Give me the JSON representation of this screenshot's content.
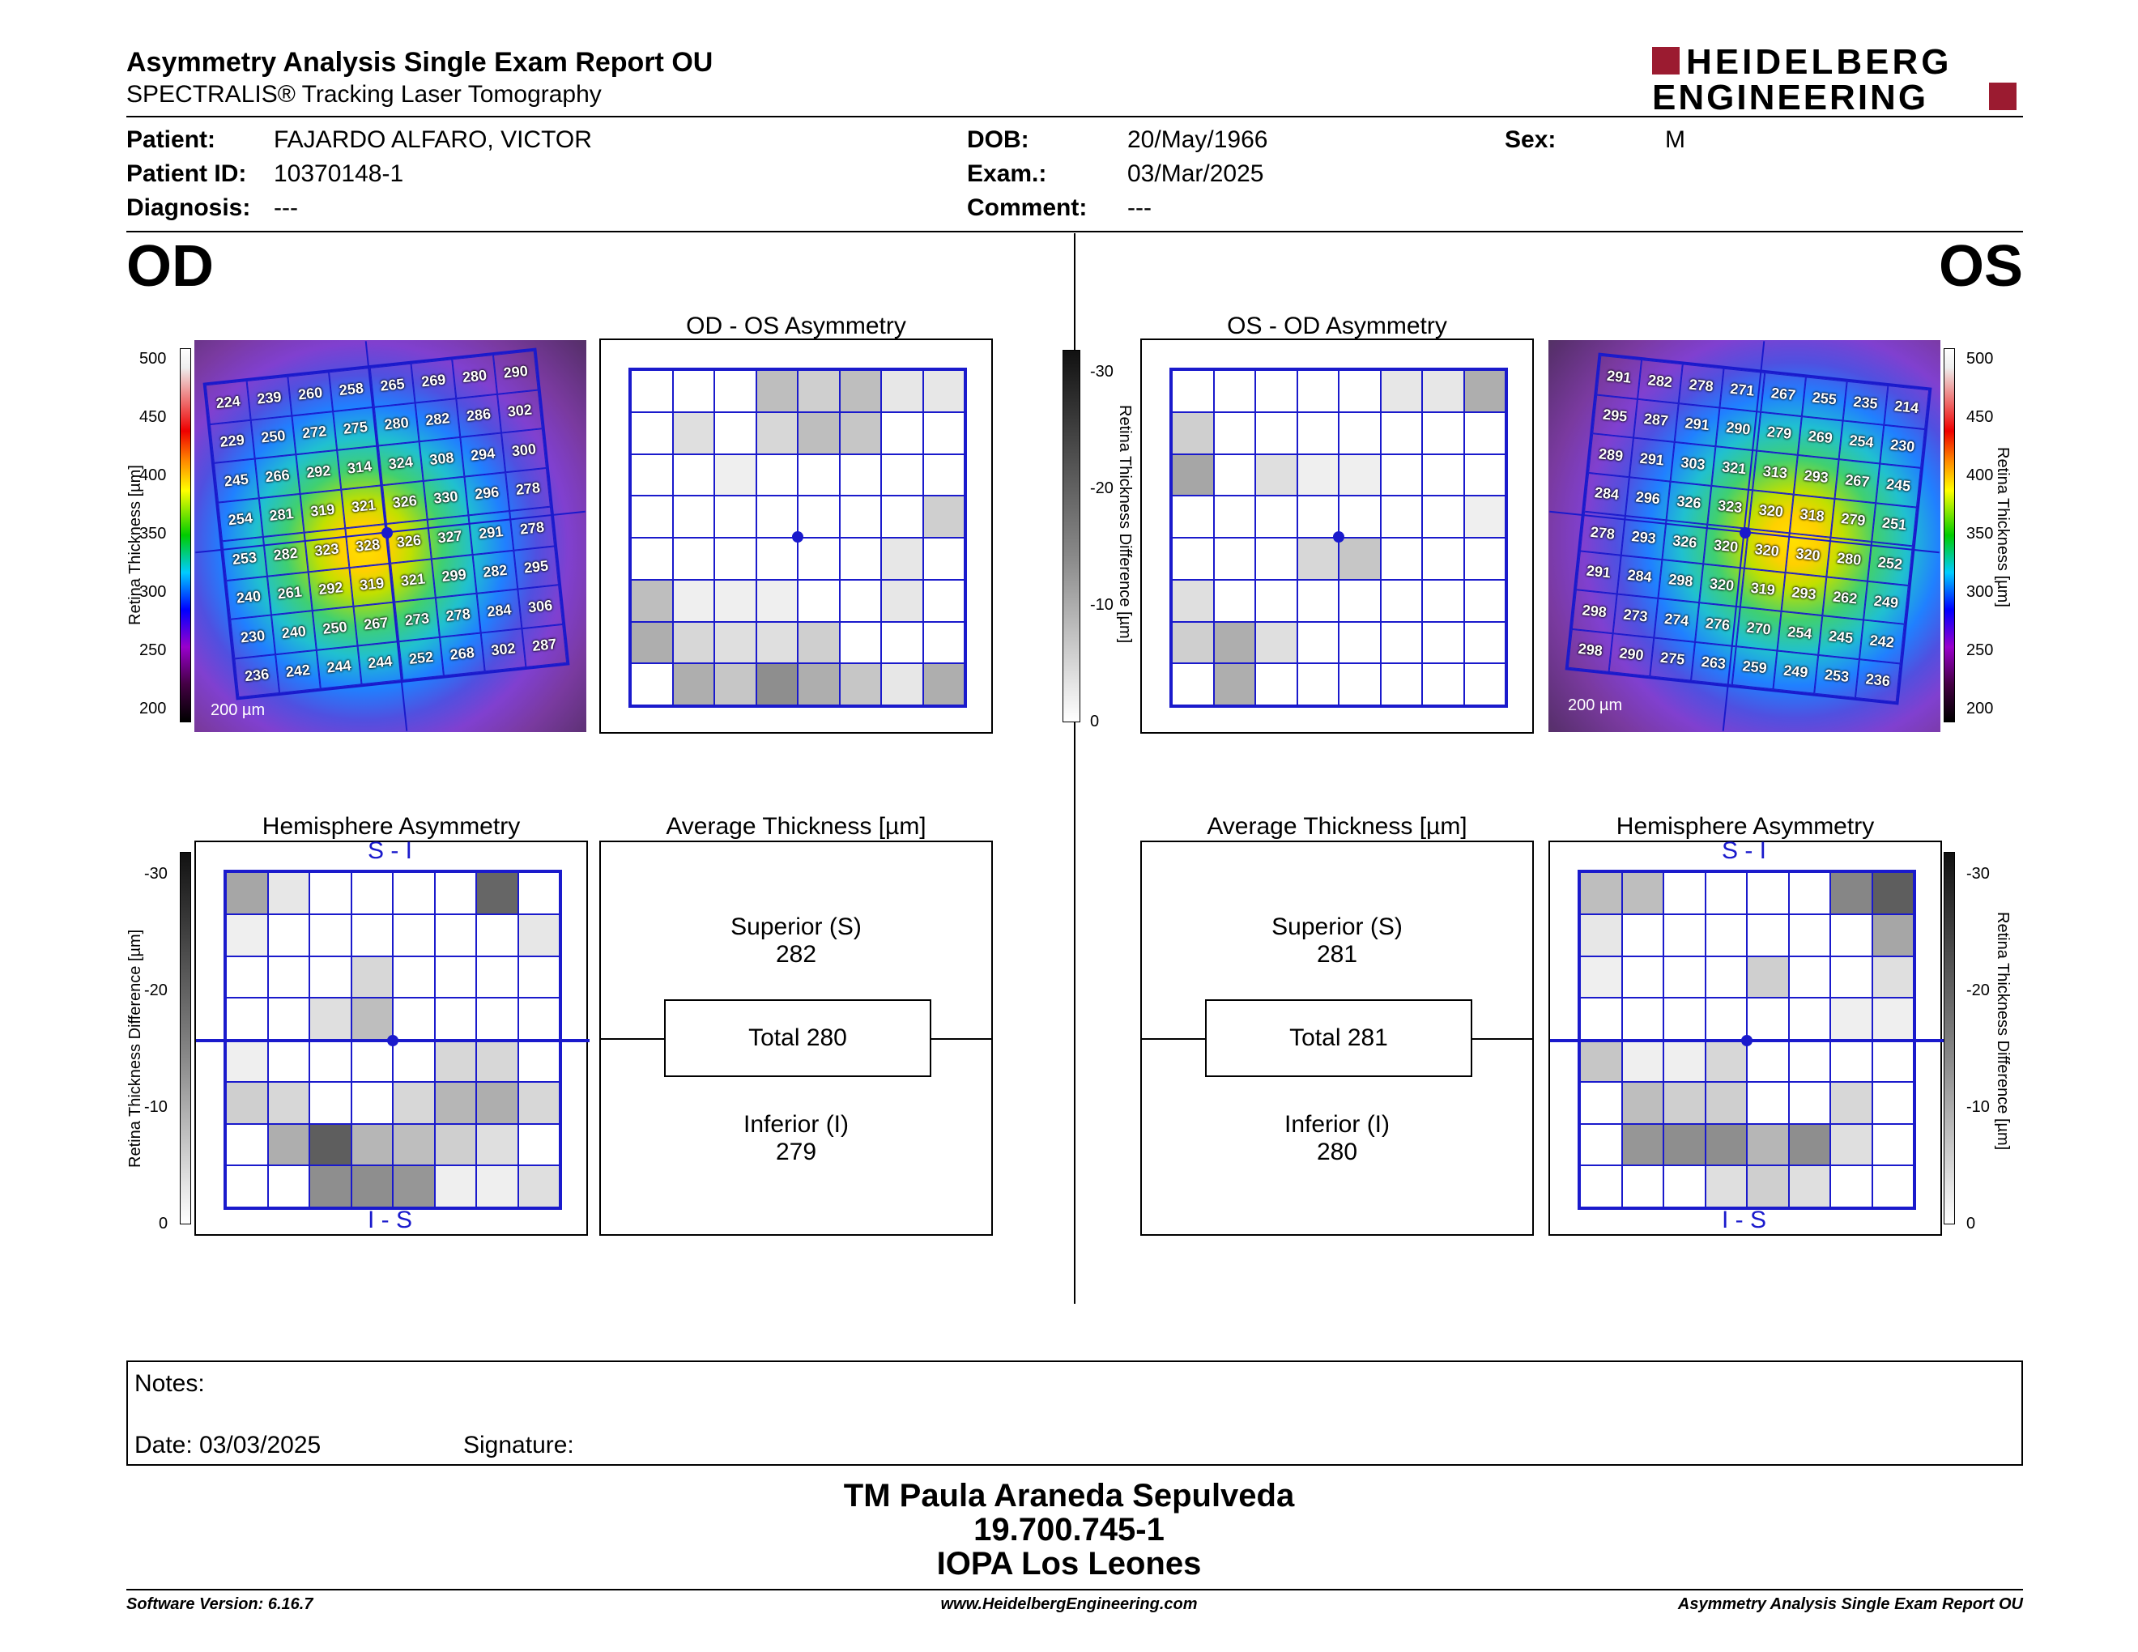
{
  "header": {
    "title": "Asymmetry Analysis Single Exam Report OU",
    "subtitle": "SPECTRALIS® Tracking Laser Tomography",
    "logo_line1": "HEIDELBERG",
    "logo_line2": "ENGINEERING",
    "brand_color": "#9b1b30"
  },
  "patient": {
    "patient_label": "Patient:",
    "patient_value": "FAJARDO ALFARO, VICTOR",
    "id_label": "Patient ID:",
    "id_value": "10370148-1",
    "diag_label": "Diagnosis:",
    "diag_value": "---",
    "dob_label": "DOB:",
    "dob_value": "20/May/1966",
    "exam_label": "Exam.:",
    "exam_value": "03/Mar/2025",
    "comment_label": "Comment:",
    "comment_value": "---",
    "sex_label": "Sex:",
    "sex_value": "M"
  },
  "od": {
    "eye_label": "OD",
    "asym_title": "OD - OS Asymmetry",
    "hemi_title": "Hemisphere Asymmetry",
    "avg_title": "Average Thickness [µm]",
    "superior_label": "Superior (S)",
    "superior_value": "282",
    "total_label": "Total 280",
    "inferior_label": "Inferior (I)",
    "inferior_value": "279",
    "scale_label": "200 µm",
    "thickness_grid": [
      [
        224,
        239,
        260,
        258,
        265,
        269,
        280,
        290
      ],
      [
        229,
        250,
        272,
        275,
        280,
        282,
        286,
        302
      ],
      [
        245,
        266,
        292,
        314,
        324,
        308,
        294,
        300
      ],
      [
        254,
        281,
        319,
        321,
        326,
        330,
        296,
        278
      ],
      [
        253,
        282,
        323,
        328,
        326,
        327,
        291,
        278
      ],
      [
        240,
        261,
        292,
        319,
        321,
        299,
        282,
        295
      ],
      [
        230,
        240,
        250,
        267,
        273,
        278,
        284,
        306
      ],
      [
        236,
        242,
        244,
        244,
        252,
        268,
        302,
        287
      ]
    ],
    "asym_grid": [
      [
        0,
        0,
        0,
        8,
        6,
        8,
        3,
        3
      ],
      [
        0,
        4,
        0,
        5,
        8,
        7,
        0,
        0
      ],
      [
        0,
        0,
        2,
        0,
        0,
        0,
        0,
        0
      ],
      [
        0,
        0,
        0,
        0,
        0,
        0,
        0,
        6
      ],
      [
        0,
        0,
        0,
        0,
        0,
        0,
        3,
        0
      ],
      [
        8,
        2,
        2,
        2,
        0,
        0,
        3,
        0
      ],
      [
        10,
        5,
        4,
        4,
        6,
        0,
        0,
        0
      ],
      [
        0,
        10,
        7,
        14,
        10,
        7,
        3,
        10
      ]
    ],
    "hemi_grid": [
      [
        11,
        3,
        0,
        0,
        0,
        0,
        19,
        0
      ],
      [
        2,
        0,
        0,
        0,
        0,
        0,
        0,
        3
      ],
      [
        0,
        0,
        0,
        5,
        0,
        0,
        0,
        0
      ],
      [
        0,
        0,
        4,
        8,
        0,
        0,
        0,
        0
      ],
      [
        2,
        0,
        0,
        0,
        0,
        5,
        5,
        0
      ],
      [
        6,
        5,
        0,
        0,
        5,
        9,
        10,
        5
      ],
      [
        0,
        10,
        20,
        9,
        8,
        6,
        4,
        0
      ],
      [
        0,
        0,
        14,
        14,
        13,
        2,
        2,
        4
      ]
    ]
  },
  "os": {
    "eye_label": "OS",
    "asym_title": "OS - OD Asymmetry",
    "hemi_title": "Hemisphere Asymmetry",
    "avg_title": "Average Thickness [µm]",
    "superior_label": "Superior (S)",
    "superior_value": "281",
    "total_label": "Total 281",
    "inferior_label": "Inferior (I)",
    "inferior_value": "280",
    "scale_label": "200 µm",
    "thickness_grid": [
      [
        291,
        282,
        278,
        271,
        267,
        255,
        235,
        214
      ],
      [
        295,
        287,
        291,
        290,
        279,
        269,
        254,
        230
      ],
      [
        289,
        291,
        303,
        321,
        313,
        293,
        267,
        245
      ],
      [
        284,
        296,
        326,
        323,
        320,
        318,
        279,
        251
      ],
      [
        278,
        293,
        326,
        320,
        320,
        320,
        280,
        252
      ],
      [
        291,
        284,
        298,
        320,
        319,
        293,
        262,
        249
      ],
      [
        298,
        273,
        274,
        276,
        270,
        254,
        245,
        242
      ],
      [
        298,
        290,
        275,
        263,
        259,
        249,
        253,
        236
      ]
    ],
    "asym_grid": [
      [
        0,
        0,
        0,
        0,
        0,
        3,
        3,
        10
      ],
      [
        6,
        0,
        0,
        0,
        0,
        0,
        0,
        0
      ],
      [
        11,
        0,
        4,
        2,
        2,
        0,
        0,
        0
      ],
      [
        0,
        0,
        0,
        0,
        0,
        0,
        0,
        2
      ],
      [
        0,
        0,
        0,
        5,
        7,
        0,
        0,
        0
      ],
      [
        4,
        0,
        0,
        0,
        0,
        0,
        0,
        0
      ],
      [
        6,
        10,
        4,
        0,
        0,
        0,
        0,
        0
      ],
      [
        0,
        10,
        0,
        0,
        0,
        0,
        0,
        0
      ]
    ],
    "hemi_grid": [
      [
        8,
        8,
        0,
        0,
        0,
        0,
        15,
        20
      ],
      [
        3,
        0,
        0,
        0,
        0,
        0,
        0,
        11
      ],
      [
        2,
        0,
        0,
        0,
        6,
        0,
        0,
        4
      ],
      [
        0,
        0,
        0,
        0,
        0,
        0,
        2,
        2
      ],
      [
        7,
        2,
        2,
        5,
        0,
        0,
        0,
        0
      ],
      [
        0,
        8,
        6,
        6,
        0,
        0,
        5,
        0
      ],
      [
        0,
        13,
        14,
        14,
        9,
        14,
        4,
        0
      ],
      [
        0,
        0,
        0,
        4,
        6,
        4,
        0,
        0
      ]
    ]
  },
  "scales": {
    "thickness_ticks": [
      "500",
      "450",
      "400",
      "350",
      "300",
      "250",
      "200"
    ],
    "thickness_label": "Retina Thickness [µm]",
    "diff_ticks": [
      "-30",
      "-20",
      "-10",
      "0"
    ],
    "diff_label": "Retina Thickness Difference [µm]",
    "s_i": "S - I",
    "i_s": "I - S"
  },
  "notes": {
    "notes_label": "Notes:",
    "date_label": "Date: 03/03/2025",
    "signature_label": "Signature:"
  },
  "signature": {
    "name": "TM Paula Araneda Sepulveda",
    "rut": "19.700.745-1",
    "place": "IOPA Los Leones"
  },
  "footer": {
    "version": "Software Version: 6.16.7",
    "url": "www.HeidelbergEngineering.com",
    "report": "Asymmetry Analysis Single Exam Report OU"
  }
}
